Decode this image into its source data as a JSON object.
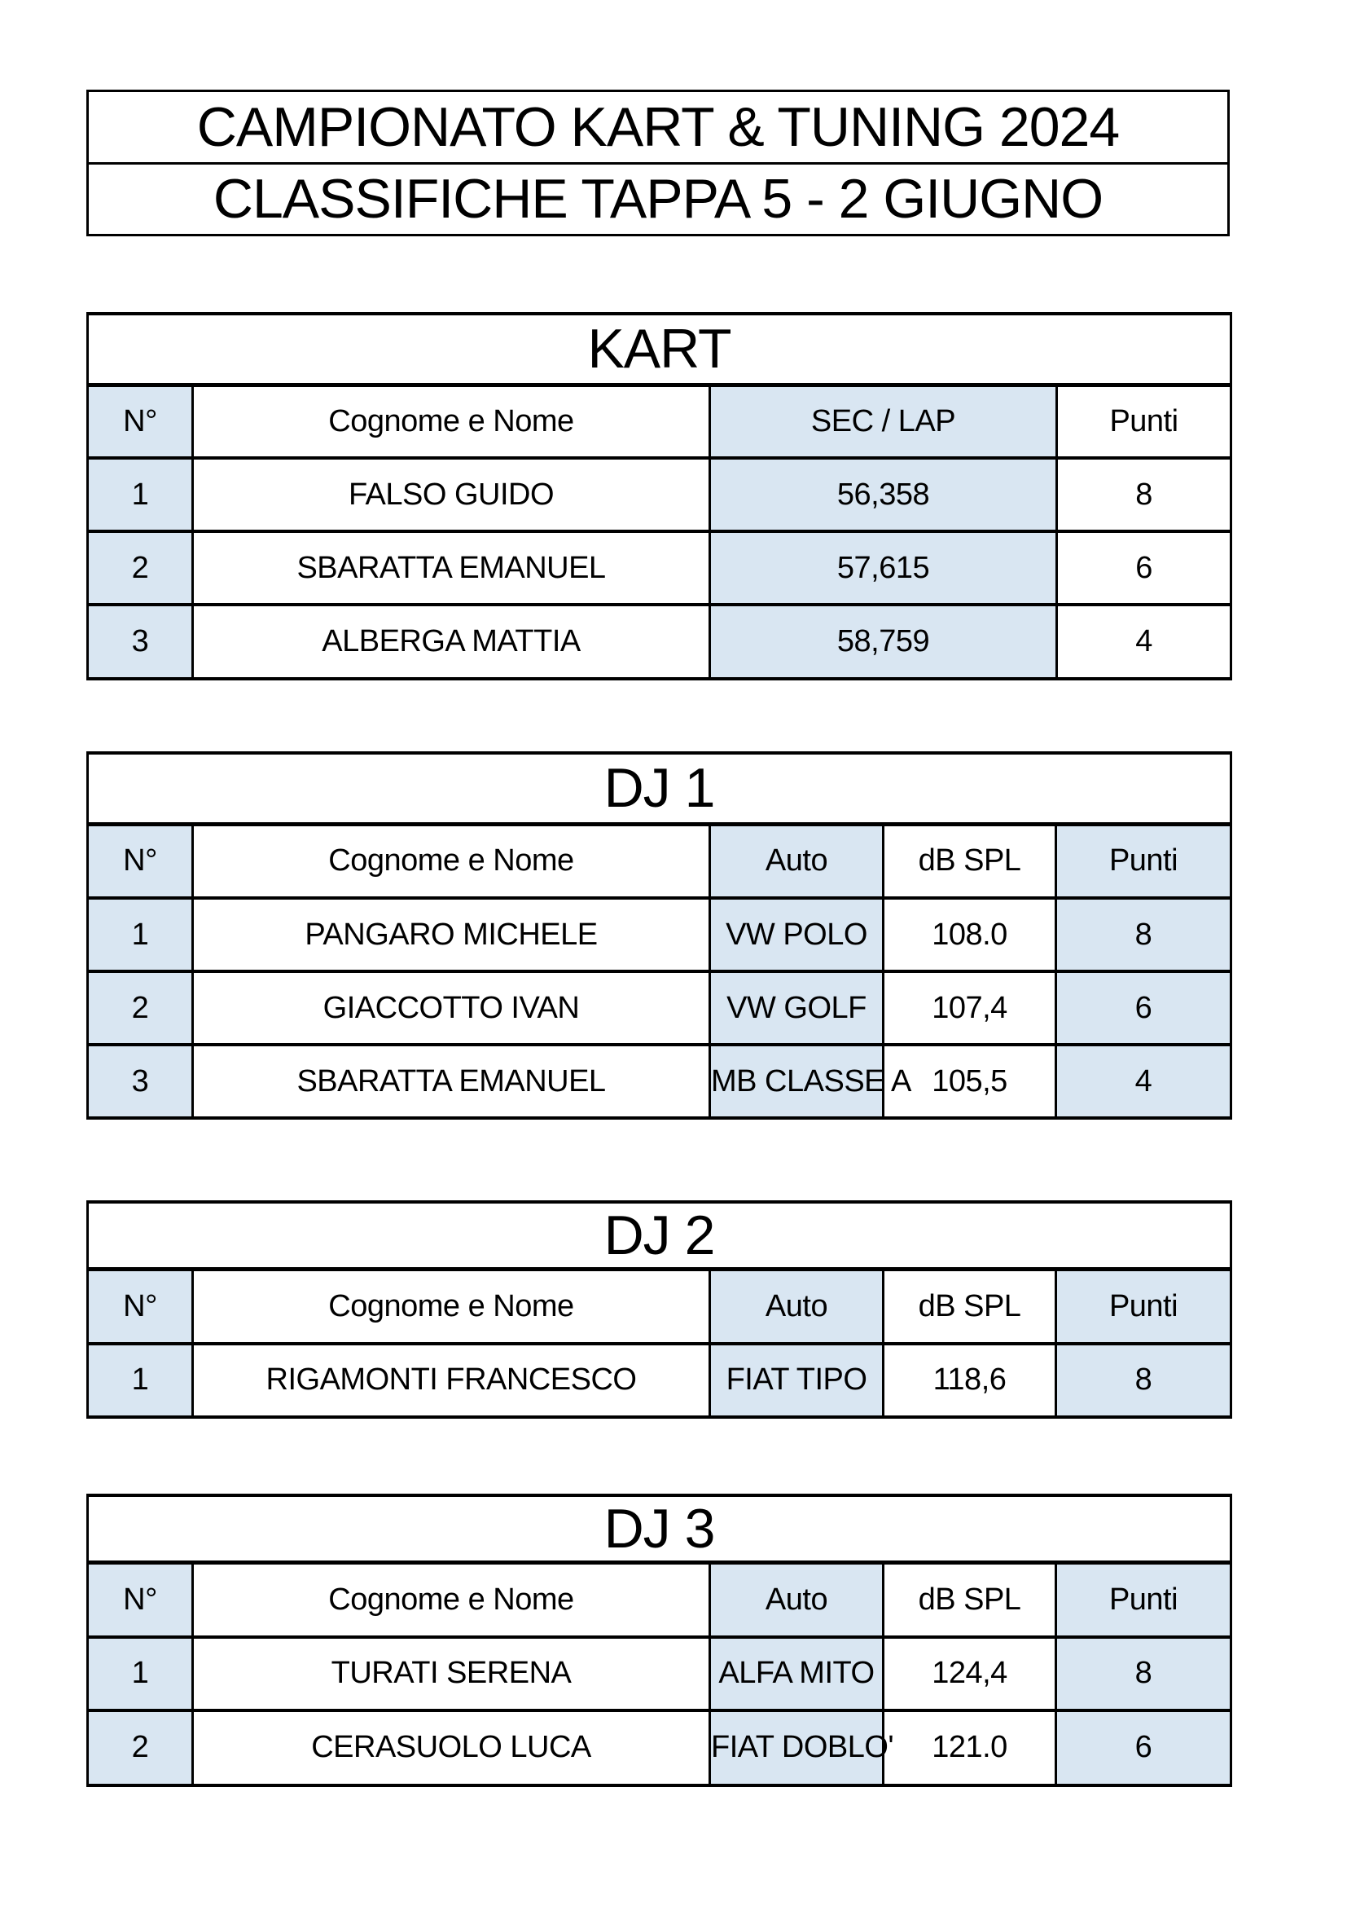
{
  "header": {
    "line1": "CAMPIONATO KART & TUNING 2024",
    "line2": "CLASSIFICHE TAPPA 5 - 2 GIUGNO"
  },
  "colors": {
    "highlight_blue": "#d9e6f2",
    "border_black": "#000000",
    "page_background": "#ffffff"
  },
  "tables": [
    {
      "title": "KART",
      "columns": [
        "N°",
        "Cognome e Nome",
        "SEC / LAP",
        "Punti"
      ],
      "rows": [
        [
          "1",
          "FALSO GUIDO",
          "56,358",
          "8"
        ],
        [
          "2",
          "SBARATTA EMANUEL",
          "57,615",
          "6"
        ],
        [
          "3",
          "ALBERGA MATTIA",
          "58,759",
          "4"
        ]
      ]
    },
    {
      "title": "DJ 1",
      "columns": [
        "N°",
        "Cognome e Nome",
        "Auto",
        "dB SPL",
        "Punti"
      ],
      "rows": [
        [
          "1",
          "PANGARO MICHELE",
          "VW POLO",
          "108.0",
          "8"
        ],
        [
          "2",
          "GIACCOTTO IVAN",
          "VW GOLF",
          "107,4",
          "6"
        ],
        [
          "3",
          "SBARATTA EMANUEL",
          "MB CLASSE A",
          "105,5",
          "4"
        ]
      ]
    },
    {
      "title": "DJ 2",
      "columns": [
        "N°",
        "Cognome e Nome",
        "Auto",
        "dB SPL",
        "Punti"
      ],
      "rows": [
        [
          "1",
          "RIGAMONTI FRANCESCO",
          "FIAT TIPO",
          "118,6",
          "8"
        ]
      ]
    },
    {
      "title": "DJ 3",
      "columns": [
        "N°",
        "Cognome e Nome",
        "Auto",
        "dB SPL",
        "Punti"
      ],
      "rows": [
        [
          "1",
          "TURATI SERENA",
          "ALFA MITO",
          "124,4",
          "8"
        ],
        [
          "2",
          "CERASUOLO LUCA",
          "FIAT DOBLO'",
          "121.0",
          "6"
        ]
      ]
    }
  ]
}
